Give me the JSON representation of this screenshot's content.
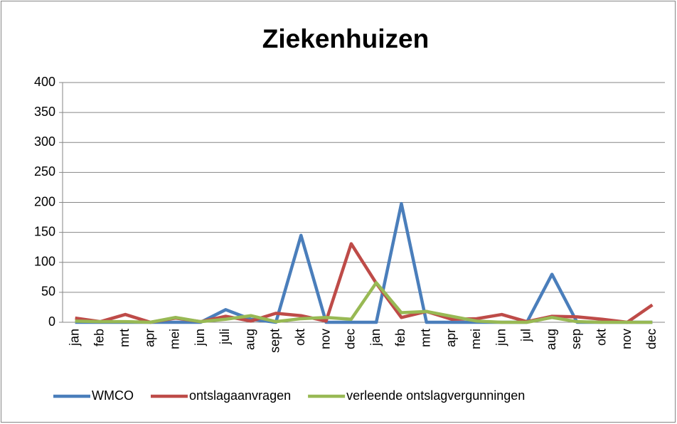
{
  "chart_data": {
    "type": "line",
    "title": "Ziekenhuizen",
    "categories": [
      "jan",
      "feb",
      "mrt",
      "apr",
      "mei",
      "jun",
      "juli",
      "aug",
      "sept",
      "okt",
      "nov",
      "dec",
      "jan",
      "feb",
      "mrt",
      "apr",
      "mei",
      "jun",
      "jul",
      "aug",
      "sep",
      "okt",
      "nov",
      "dec"
    ],
    "series": [
      {
        "name": "WMCO",
        "color": "#4a7ebb",
        "values": [
          0,
          0,
          0,
          0,
          0,
          0,
          21,
          5,
          0,
          145,
          0,
          0,
          0,
          198,
          0,
          0,
          0,
          0,
          0,
          80,
          0,
          0,
          0,
          0
        ]
      },
      {
        "name": "ontslagaanvragen",
        "color": "#be4b48",
        "values": [
          7,
          1,
          13,
          0,
          7,
          1,
          10,
          2,
          15,
          11,
          2,
          131,
          65,
          8,
          18,
          5,
          6,
          13,
          1,
          10,
          9,
          5,
          0,
          29
        ]
      },
      {
        "name": "verleende ontslagvergunningen",
        "color": "#98b954",
        "values": [
          2,
          1,
          1,
          0,
          8,
          1,
          5,
          11,
          1,
          6,
          8,
          5,
          66,
          16,
          18,
          10,
          2,
          0,
          0,
          8,
          1,
          0,
          0,
          0
        ]
      }
    ],
    "ylim": [
      0,
      400
    ],
    "yticks": [
      0,
      50,
      100,
      150,
      200,
      250,
      300,
      350,
      400
    ],
    "grid": true,
    "legend": "bottom"
  }
}
